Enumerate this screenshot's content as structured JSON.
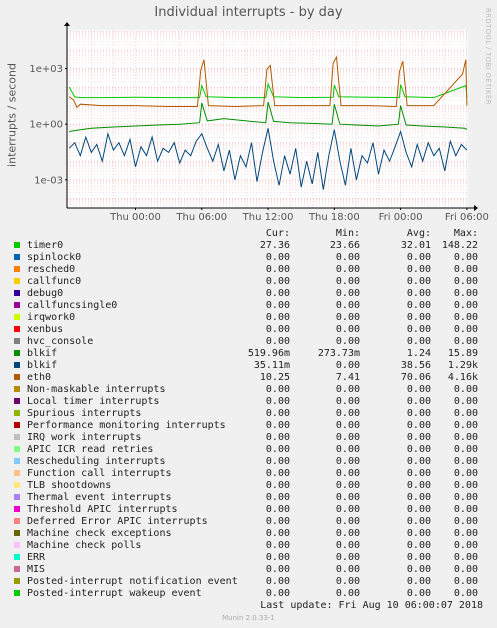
{
  "title": "Individual interrupts - by day",
  "watermark": "RRDTOOL / TOBI OETIKER",
  "footer": {
    "last_update": "Last update: Fri Aug 10 06:00:07 2018",
    "version": "Munin 2.0.33-1"
  },
  "legend_headers": {
    "cur": "Cur:",
    "min": "Min:",
    "avg": "Avg:",
    "max": "Max:"
  },
  "legend": [
    {
      "name": "timer0",
      "color": "#00cc00",
      "cur": "27.36",
      "min": "23.66",
      "avg": "32.01",
      "max": "148.22"
    },
    {
      "name": "spinlock0",
      "color": "#0066b3",
      "cur": "0.00",
      "min": "0.00",
      "avg": "0.00",
      "max": "0.00"
    },
    {
      "name": "resched0",
      "color": "#ff8000",
      "cur": "0.00",
      "min": "0.00",
      "avg": "0.00",
      "max": "0.00"
    },
    {
      "name": "callfunc0",
      "color": "#ffcc00",
      "cur": "0.00",
      "min": "0.00",
      "avg": "0.00",
      "max": "0.00"
    },
    {
      "name": "debug0",
      "color": "#330099",
      "cur": "0.00",
      "min": "0.00",
      "avg": "0.00",
      "max": "0.00"
    },
    {
      "name": "callfuncsingle0",
      "color": "#990099",
      "cur": "0.00",
      "min": "0.00",
      "avg": "0.00",
      "max": "0.00"
    },
    {
      "name": "irqwork0",
      "color": "#ccff00",
      "cur": "0.00",
      "min": "0.00",
      "avg": "0.00",
      "max": "0.00"
    },
    {
      "name": "xenbus",
      "color": "#ff0000",
      "cur": "0.00",
      "min": "0.00",
      "avg": "0.00",
      "max": "0.00"
    },
    {
      "name": "hvc_console",
      "color": "#808080",
      "cur": "0.00",
      "min": "0.00",
      "avg": "0.00",
      "max": "0.00"
    },
    {
      "name": "blkif",
      "color": "#008f00",
      "cur": "519.96m",
      "min": "273.73m",
      "avg": "1.24",
      "max": "15.89"
    },
    {
      "name": "blkif",
      "color": "#00487d",
      "cur": "35.11m",
      "min": "0.00",
      "avg": "38.56",
      "max": "1.29k"
    },
    {
      "name": "eth0",
      "color": "#b35a00",
      "cur": "10.25",
      "min": "7.41",
      "avg": "70.06",
      "max": "4.16k"
    },
    {
      "name": "Non-maskable interrupts",
      "color": "#b38f00",
      "cur": "0.00",
      "min": "0.00",
      "avg": "0.00",
      "max": "0.00"
    },
    {
      "name": "Local timer interrupts",
      "color": "#6b006b",
      "cur": "0.00",
      "min": "0.00",
      "avg": "0.00",
      "max": "0.00"
    },
    {
      "name": "Spurious interrupts",
      "color": "#8fb300",
      "cur": "0.00",
      "min": "0.00",
      "avg": "0.00",
      "max": "0.00"
    },
    {
      "name": "Performance monitoring interrupts",
      "color": "#b30000",
      "cur": "0.00",
      "min": "0.00",
      "avg": "0.00",
      "max": "0.00"
    },
    {
      "name": "IRQ work interrupts",
      "color": "#bebebe",
      "cur": "0.00",
      "min": "0.00",
      "avg": "0.00",
      "max": "0.00"
    },
    {
      "name": "APIC ICR read retries",
      "color": "#80ff80",
      "cur": "0.00",
      "min": "0.00",
      "avg": "0.00",
      "max": "0.00"
    },
    {
      "name": "Rescheduling interrupts",
      "color": "#80c9ff",
      "cur": "0.00",
      "min": "0.00",
      "avg": "0.00",
      "max": "0.00"
    },
    {
      "name": "Function call interrupts",
      "color": "#ffc080",
      "cur": "0.00",
      "min": "0.00",
      "avg": "0.00",
      "max": "0.00"
    },
    {
      "name": "TLB shootdowns",
      "color": "#ffe680",
      "cur": "0.00",
      "min": "0.00",
      "avg": "0.00",
      "max": "0.00"
    },
    {
      "name": "Thermal event interrupts",
      "color": "#aa80ff",
      "cur": "0.00",
      "min": "0.00",
      "avg": "0.00",
      "max": "0.00"
    },
    {
      "name": "Threshold APIC interrupts",
      "color": "#ee00cc",
      "cur": "0.00",
      "min": "0.00",
      "avg": "0.00",
      "max": "0.00"
    },
    {
      "name": "Deferred Error APIC interrupts",
      "color": "#ff8080",
      "cur": "0.00",
      "min": "0.00",
      "avg": "0.00",
      "max": "0.00"
    },
    {
      "name": "Machine check exceptions",
      "color": "#666600",
      "cur": "0.00",
      "min": "0.00",
      "avg": "0.00",
      "max": "0.00"
    },
    {
      "name": "Machine check polls",
      "color": "#ffbfff",
      "cur": "0.00",
      "min": "0.00",
      "avg": "0.00",
      "max": "0.00"
    },
    {
      "name": "ERR",
      "color": "#00ffcc",
      "cur": "0.00",
      "min": "0.00",
      "avg": "0.00",
      "max": "0.00"
    },
    {
      "name": "MIS",
      "color": "#cc6699",
      "cur": "0.00",
      "min": "0.00",
      "avg": "0.00",
      "max": "0.00"
    },
    {
      "name": "Posted-interrupt notification event",
      "color": "#999900",
      "cur": "0.00",
      "min": "0.00",
      "avg": "0.00",
      "max": "0.00"
    },
    {
      "name": "Posted-interrupt wakeup event",
      "color": "#00cc00",
      "cur": "0.00",
      "min": "0.00",
      "avg": "0.00",
      "max": "0.00"
    }
  ],
  "chart_data": {
    "type": "line",
    "title": "Individual interrupts - by day",
    "ylabel": "interrupts / second",
    "yscale": "log",
    "ylim": [
      3e-05,
      120000
    ],
    "yticks": [
      {
        "value": 0.001,
        "label": "1e-03"
      },
      {
        "value": 1,
        "label": "1e+00"
      },
      {
        "value": 1000,
        "label": "1e+03"
      }
    ],
    "xlim": [
      -6.2,
      30.1
    ],
    "xticks": [
      {
        "value": 0,
        "label": "Thu 00:00"
      },
      {
        "value": 6,
        "label": "Thu 06:00"
      },
      {
        "value": 12,
        "label": "Thu 12:00"
      },
      {
        "value": 18,
        "label": "Thu 18:00"
      },
      {
        "value": 24,
        "label": "Fri 00:00"
      },
      {
        "value": 30,
        "label": "Fri 06:00"
      }
    ],
    "grid": true,
    "series": [
      {
        "name": "timer0",
        "color": "#00cc00",
        "x": [
          -6,
          -5.5,
          -5.3,
          -5,
          -3,
          0,
          3,
          5.8,
          6,
          6.4,
          9,
          11.8,
          12,
          12.5,
          15,
          17.9,
          18,
          18.4,
          21,
          23.9,
          24,
          24.4,
          27,
          29.9,
          30
        ],
        "y": [
          100,
          30,
          28,
          27,
          27,
          28,
          27,
          27,
          120,
          30,
          27,
          27,
          148,
          30,
          27,
          28,
          130,
          30,
          28,
          27,
          135,
          30,
          27,
          120,
          27
        ]
      },
      {
        "name": "eth0",
        "color": "#b35a00",
        "x": [
          -6,
          -5.6,
          -5.3,
          -5,
          -3,
          0,
          3,
          5.6,
          5.9,
          6.2,
          6.6,
          9,
          11.6,
          11.9,
          12.2,
          12.6,
          15,
          17.6,
          17.9,
          18.2,
          18.6,
          21,
          23.6,
          23.9,
          24.2,
          24.6,
          27,
          29.6,
          29.9,
          30
        ],
        "y": [
          30,
          20,
          8,
          12,
          10,
          10,
          9,
          9,
          800,
          3000,
          10,
          9,
          10,
          900,
          1500,
          10,
          10,
          10,
          2000,
          4160,
          10,
          10,
          9,
          700,
          2500,
          10,
          10,
          500,
          3000,
          10
        ]
      },
      {
        "name": "blkif",
        "color": "#008f00",
        "x": [
          -6,
          -5,
          -4,
          -2,
          0,
          2,
          4,
          5.8,
          6,
          6.5,
          8,
          10,
          11.8,
          12,
          12.5,
          14,
          16,
          17.8,
          18,
          18.5,
          20,
          22,
          23.8,
          24,
          24.5,
          26,
          28,
          29.8,
          30
        ],
        "y": [
          0.4,
          0.5,
          0.6,
          0.7,
          0.8,
          0.9,
          1,
          1.2,
          14,
          1.5,
          2,
          1.5,
          1.2,
          15.9,
          1.4,
          1.2,
          1.1,
          1,
          12,
          1,
          0.9,
          0.8,
          1,
          10,
          0.9,
          0.8,
          0.7,
          0.6,
          0.52
        ]
      },
      {
        "name": "blkif",
        "color": "#00487d",
        "x": [
          -6,
          -5.5,
          -5,
          -4.5,
          -4,
          -3.5,
          -3,
          -2.5,
          -2,
          -1.5,
          -1,
          -0.5,
          0,
          0.5,
          1,
          1.5,
          2,
          2.5,
          3,
          3.5,
          4,
          4.5,
          5,
          5.5,
          6,
          6.5,
          7,
          7.5,
          8,
          8.5,
          9,
          9.5,
          10,
          10.5,
          11,
          11.5,
          12,
          12.5,
          13,
          13.5,
          14,
          14.5,
          15,
          15.5,
          16,
          16.5,
          17,
          17.5,
          18,
          18.5,
          19,
          19.5,
          20,
          20.5,
          21,
          21.5,
          22,
          22.5,
          23,
          23.5,
          24,
          24.5,
          25,
          25.5,
          26,
          26.5,
          27,
          27.5,
          28,
          28.5,
          29,
          29.5,
          30
        ],
        "y": [
          0.05,
          0.1,
          0.02,
          0.2,
          0.03,
          0.08,
          0.01,
          0.3,
          0.04,
          0.1,
          0.02,
          0.15,
          0.005,
          0.06,
          0.02,
          0.2,
          0.01,
          0.05,
          0.03,
          0.1,
          0.008,
          0.04,
          0.02,
          0.12,
          0.3,
          0.05,
          0.01,
          0.08,
          0.003,
          0.04,
          0.001,
          0.02,
          0.005,
          0.1,
          0.0008,
          0.03,
          0.6,
          0.01,
          0.0005,
          0.02,
          0.002,
          0.05,
          0.0004,
          0.01,
          0.0006,
          0.03,
          0.0003,
          0.02,
          0.5,
          0.01,
          0.0005,
          0.05,
          0.001,
          0.02,
          0.008,
          0.1,
          0.002,
          0.04,
          0.01,
          0.06,
          0.4,
          0.03,
          0.005,
          0.08,
          0.01,
          0.1,
          0.02,
          0.05,
          0.003,
          0.12,
          0.02,
          0.08,
          0.04
        ]
      }
    ]
  }
}
